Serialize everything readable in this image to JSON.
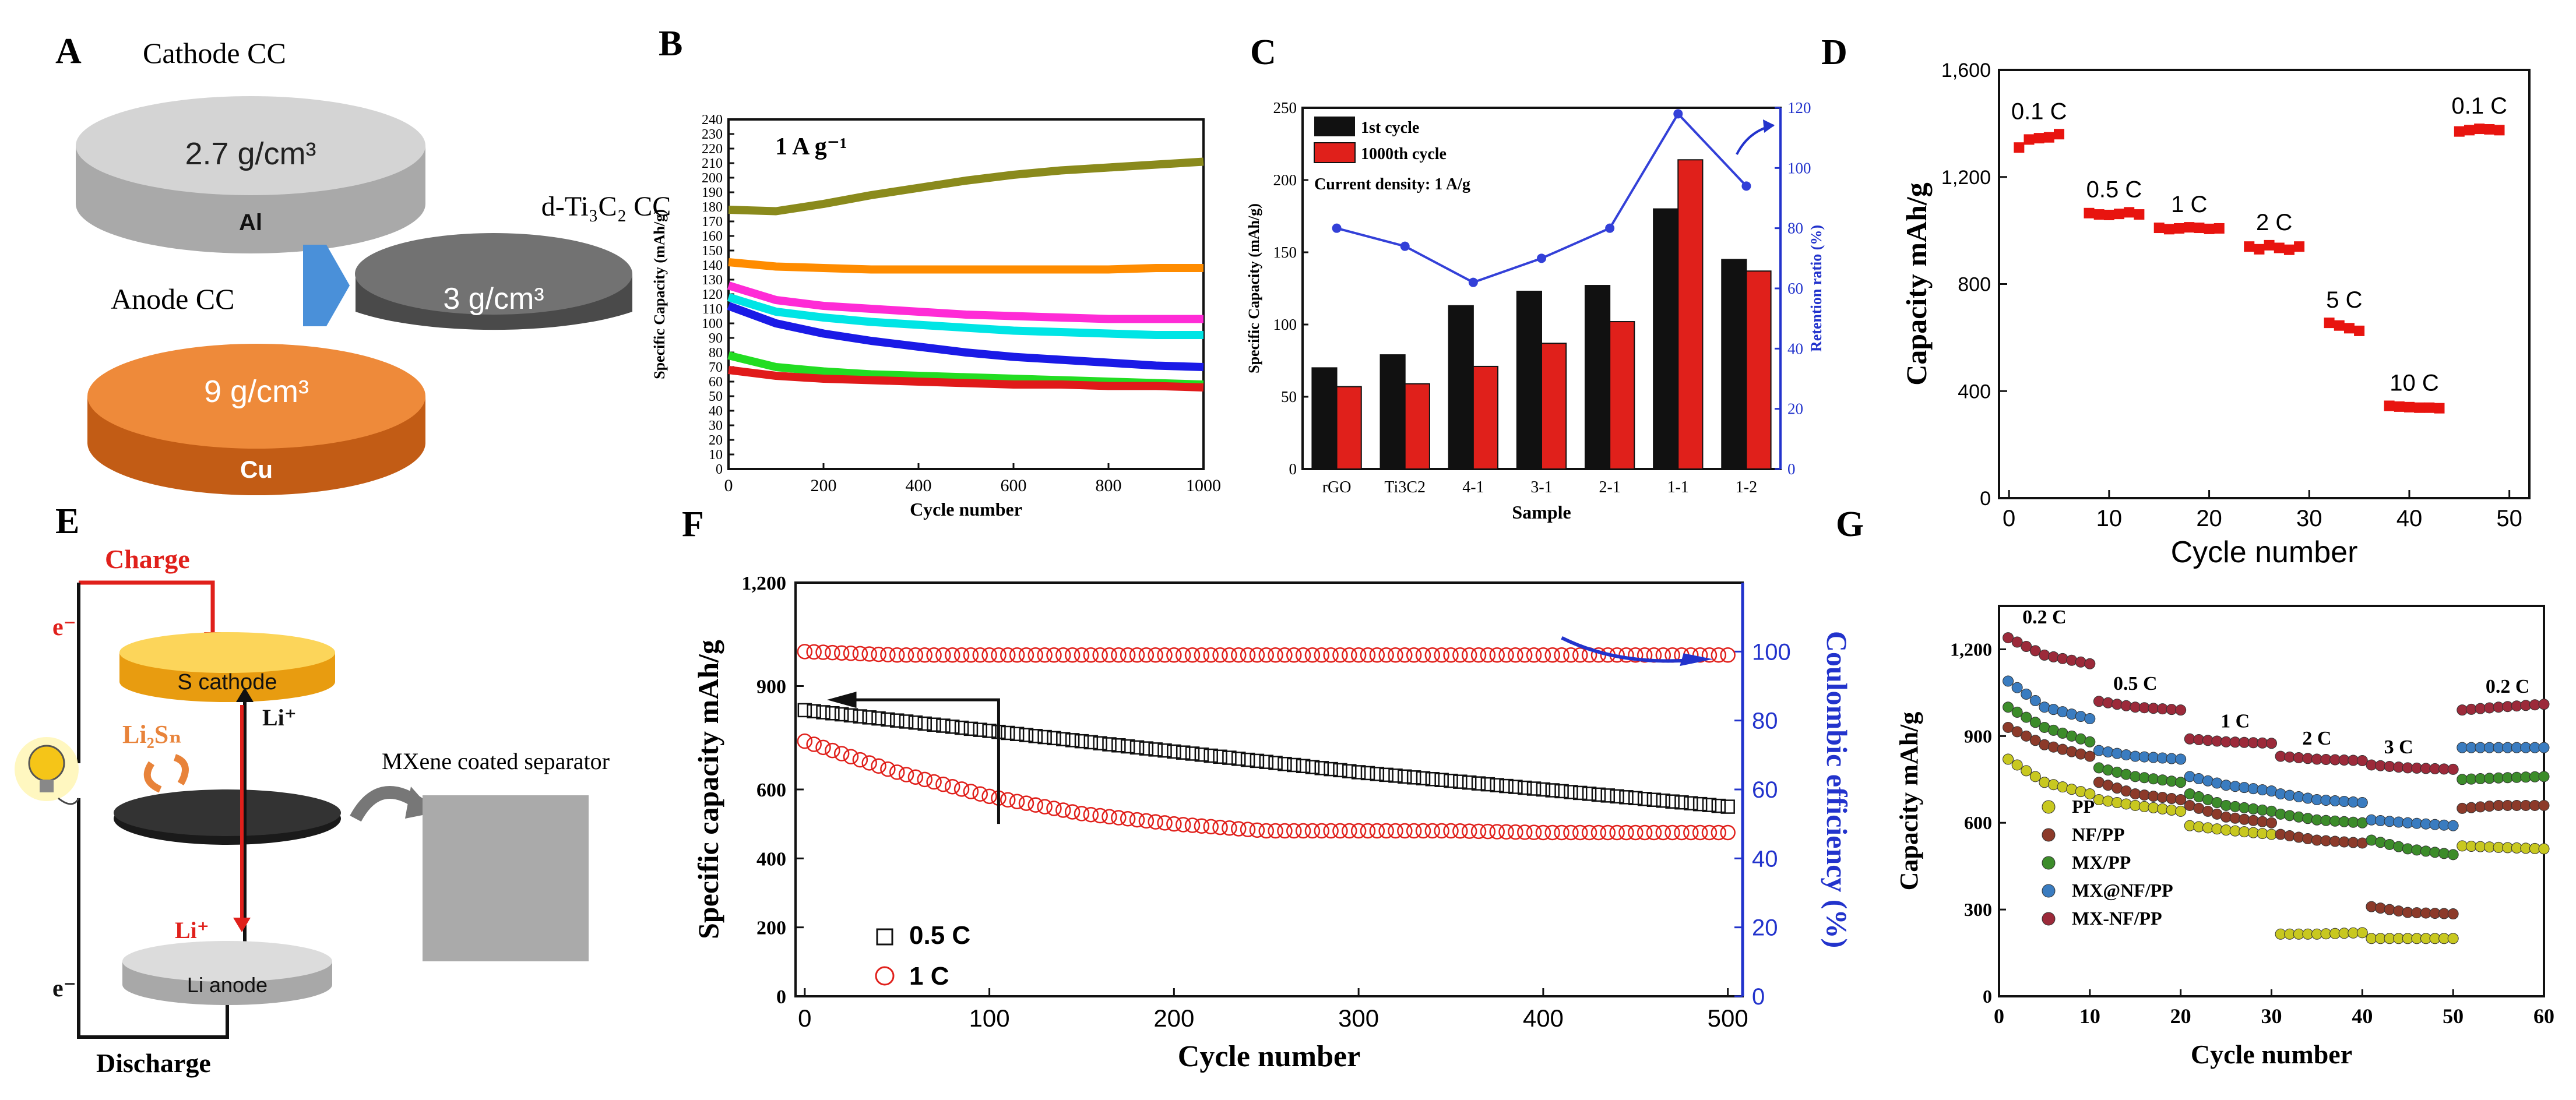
{
  "colors": {
    "black": "#111111",
    "red": "#e0201b",
    "blue": "#2a2fd0",
    "axis_blue": "#2233cc",
    "al": "#c9c9c9",
    "ti": "#6d6d6d",
    "cu": "#e87e2c",
    "arrow": "#4a90d9",
    "s_cathode": "#f5b21a"
  },
  "panel_a": {
    "letter": "A",
    "cathode_cc": "Cathode CC",
    "anode_cc": "Anode CC",
    "al_density": "2.7 g/cm³",
    "al_label": "Al",
    "ti_density": "3 g/cm³",
    "ti_label": "d-Ti₃C₂ CC",
    "cu_density": "9 g/cm³",
    "cu_label": "Cu"
  },
  "panel_e": {
    "letter": "E",
    "charge": "Charge",
    "discharge": "Discharge",
    "e_top": "e⁻",
    "e_bottom": "e⁻",
    "s_cathode": "S cathode",
    "li2sn": "Li₂Sₙ",
    "li_plus_up": "Li⁺",
    "li_plus_down": "Li⁺",
    "li_anode": "Li anode",
    "separator_label": "MXene coated separator"
  },
  "chart_data": [
    {
      "id": "B",
      "type": "line",
      "title": "",
      "annotation": "1 A g⁻¹",
      "xlabel": "Cycle number",
      "ylabel": "Specific Capacity (mAh/g)",
      "xlim": [
        0,
        1000
      ],
      "ylim": [
        0,
        240
      ],
      "xticks": [
        0,
        200,
        400,
        600,
        800,
        1000
      ],
      "yticks": [
        0,
        10,
        20,
        30,
        40,
        50,
        60,
        70,
        80,
        90,
        100,
        110,
        120,
        130,
        140,
        150,
        160,
        170,
        180,
        190,
        200,
        210,
        220,
        230,
        240
      ],
      "series": [
        {
          "name": "olive",
          "color": "#8a8a1c",
          "x": [
            0,
            100,
            200,
            300,
            400,
            500,
            600,
            700,
            800,
            900,
            1000
          ],
          "y": [
            178,
            177,
            182,
            188,
            193,
            198,
            202,
            205,
            207,
            209,
            211
          ]
        },
        {
          "name": "orange",
          "color": "#ff8c00",
          "x": [
            0,
            100,
            200,
            300,
            400,
            500,
            600,
            700,
            800,
            900,
            1000
          ],
          "y": [
            142,
            139,
            138,
            137,
            137,
            137,
            137,
            137,
            137,
            138,
            138
          ]
        },
        {
          "name": "magenta",
          "color": "#ff2bd6",
          "x": [
            0,
            100,
            200,
            300,
            400,
            500,
            600,
            700,
            800,
            900,
            1000
          ],
          "y": [
            126,
            116,
            112,
            110,
            108,
            106,
            105,
            104,
            103,
            103,
            103
          ]
        },
        {
          "name": "cyan",
          "color": "#00e5e5",
          "x": [
            0,
            100,
            200,
            300,
            400,
            500,
            600,
            700,
            800,
            900,
            1000
          ],
          "y": [
            118,
            108,
            104,
            101,
            99,
            97,
            95,
            94,
            93,
            92,
            92
          ]
        },
        {
          "name": "blue",
          "color": "#1a1ae6",
          "x": [
            0,
            100,
            200,
            300,
            400,
            500,
            600,
            700,
            800,
            900,
            1000
          ],
          "y": [
            112,
            100,
            93,
            88,
            84,
            80,
            77,
            75,
            73,
            71,
            70
          ]
        },
        {
          "name": "green",
          "color": "#22dd22",
          "x": [
            0,
            100,
            200,
            300,
            400,
            500,
            600,
            700,
            800,
            900,
            1000
          ],
          "y": [
            78,
            70,
            67,
            65,
            64,
            63,
            62,
            61,
            60,
            59,
            58
          ]
        },
        {
          "name": "red",
          "color": "#e01a1a",
          "x": [
            0,
            100,
            200,
            300,
            400,
            500,
            600,
            700,
            800,
            900,
            1000
          ],
          "y": [
            68,
            64,
            62,
            61,
            60,
            59,
            58,
            58,
            57,
            57,
            56
          ]
        }
      ]
    },
    {
      "id": "C",
      "type": "bar",
      "xlabel": "Sample",
      "ylabel": "Specific Capacity (mAh/g)",
      "y2label": "Retention ratio (%)",
      "annotation": "Current density: 1 A/g",
      "categories": [
        "rGO",
        "Ti3C2",
        "4-1",
        "3-1",
        "2-1",
        "1-1",
        "1-2"
      ],
      "ylim": [
        0,
        250
      ],
      "yticks": [
        0,
        50,
        100,
        150,
        200,
        250
      ],
      "y2lim": [
        0,
        120
      ],
      "y2ticks": [
        0,
        20,
        40,
        60,
        80,
        100,
        120
      ],
      "series": [
        {
          "name": "1st cycle",
          "color": "#111111",
          "values": [
            70,
            79,
            113,
            123,
            127,
            180,
            145
          ]
        },
        {
          "name": "1000th cycle",
          "color": "#e0201b",
          "values": [
            57,
            59,
            71,
            87,
            102,
            214,
            137
          ]
        }
      ],
      "retention": {
        "name": "Retention ratio",
        "color": "#3340d8",
        "values": [
          80,
          74,
          62,
          70,
          80,
          118,
          94
        ]
      }
    },
    {
      "id": "D",
      "type": "scatter",
      "xlabel": "Cycle number",
      "ylabel": "Capacity mAh/g",
      "xlim": [
        0,
        50
      ],
      "ylim": [
        0,
        1600
      ],
      "xticks": [
        0,
        10,
        20,
        30,
        40,
        50
      ],
      "yticks": [
        0,
        400,
        800,
        1200,
        1600
      ],
      "ytick_labels": [
        "0",
        "400",
        "800",
        "1,200",
        "1,600"
      ],
      "groups": [
        {
          "label": "0.1 C",
          "x": [
            1,
            2,
            3,
            4,
            5
          ],
          "y": [
            1310,
            1340,
            1345,
            1348,
            1360
          ]
        },
        {
          "label": "0.5 C",
          "x": [
            8,
            9,
            10,
            11,
            12,
            13
          ],
          "y": [
            1065,
            1060,
            1058,
            1062,
            1068,
            1060
          ]
        },
        {
          "label": "1 C",
          "x": [
            15,
            16,
            17,
            18,
            19,
            20,
            21
          ],
          "y": [
            1010,
            1005,
            1008,
            1012,
            1010,
            1006,
            1008
          ]
        },
        {
          "label": "2 C",
          "x": [
            24,
            25,
            26,
            27,
            28,
            29
          ],
          "y": [
            940,
            930,
            945,
            935,
            928,
            940
          ]
        },
        {
          "label": "5 C",
          "x": [
            32,
            33,
            34,
            35
          ],
          "y": [
            655,
            645,
            635,
            625
          ]
        },
        {
          "label": "10 C",
          "x": [
            38,
            39,
            40,
            41,
            42,
            43
          ],
          "y": [
            345,
            342,
            340,
            338,
            338,
            336
          ]
        },
        {
          "label": "0.1 C",
          "x": [
            45,
            46,
            47,
            48,
            49
          ],
          "y": [
            1370,
            1375,
            1380,
            1378,
            1375
          ]
        }
      ]
    },
    {
      "id": "F",
      "type": "scatter",
      "xlabel": "Cycle number",
      "ylabel": "Specific capacity mAh/g",
      "y2label": "Coulombic efficiency (%)",
      "xlim": [
        0,
        500
      ],
      "ylim": [
        0,
        1200
      ],
      "xticks": [
        0,
        100,
        200,
        300,
        400,
        500
      ],
      "yticks": [
        0,
        200,
        400,
        600,
        900,
        1200
      ],
      "ytick_labels": [
        "0",
        "200",
        "400",
        "600",
        "900",
        "1,200"
      ],
      "y2lim": [
        0,
        120
      ],
      "y2ticks": [
        0,
        20,
        40,
        60,
        80,
        100
      ],
      "series": [
        {
          "name": "0.5 C",
          "color": "#111111",
          "marker": "square",
          "x": [
            0,
            50,
            100,
            150,
            200,
            250,
            300,
            350,
            400,
            450,
            500
          ],
          "y": [
            830,
            800,
            770,
            740,
            710,
            680,
            650,
            625,
            600,
            575,
            550
          ]
        },
        {
          "name": "1 C",
          "color": "#e0201b",
          "marker": "circle",
          "x": [
            0,
            50,
            100,
            150,
            200,
            250,
            300,
            350,
            400,
            450,
            500
          ],
          "y": [
            740,
            650,
            580,
            530,
            500,
            480,
            480,
            480,
            475,
            475,
            475
          ]
        },
        {
          "name": "CE",
          "color": "#e0201b",
          "marker": "circle",
          "axis": "y2",
          "x": [
            0,
            50,
            100,
            150,
            200,
            250,
            300,
            350,
            400,
            450,
            500
          ],
          "y": [
            100,
            99,
            99,
            99,
            99,
            99,
            99,
            99,
            99,
            99,
            99
          ]
        }
      ]
    },
    {
      "id": "G",
      "type": "scatter",
      "xlabel": "Cycle number",
      "ylabel": "Capacity mAh/g",
      "xlim": [
        0,
        60
      ],
      "ylim": [
        0,
        1350
      ],
      "xticks": [
        0,
        10,
        20,
        30,
        40,
        50,
        60
      ],
      "yticks": [
        0,
        300,
        600,
        900,
        1200
      ],
      "ytick_labels": [
        "0",
        "300",
        "600",
        "900",
        "1,200"
      ],
      "rate_labels": [
        "0.2 C",
        "0.5 C",
        "1 C",
        "2 C",
        "3 C",
        "0.2 C"
      ],
      "series": [
        {
          "name": "PP",
          "color": "#c8c820",
          "x": [
            1,
            5,
            10,
            11,
            15,
            20,
            21,
            25,
            30,
            31,
            35,
            40,
            41,
            45,
            50,
            51,
            55,
            60
          ],
          "y": [
            820,
            740,
            700,
            680,
            660,
            640,
            590,
            575,
            560,
            215,
            215,
            220,
            200,
            200,
            200,
            520,
            515,
            510
          ]
        },
        {
          "name": "NF/PP",
          "color": "#8c3a2a",
          "x": [
            1,
            5,
            10,
            11,
            15,
            20,
            21,
            25,
            30,
            31,
            35,
            40,
            41,
            45,
            50,
            51,
            55,
            60
          ],
          "y": [
            930,
            870,
            830,
            740,
            700,
            680,
            660,
            620,
            600,
            560,
            540,
            530,
            310,
            290,
            285,
            650,
            660,
            660
          ]
        },
        {
          "name": "MX/PP",
          "color": "#3c8c2a",
          "x": [
            1,
            5,
            10,
            11,
            15,
            20,
            21,
            25,
            30,
            31,
            35,
            40,
            41,
            45,
            50,
            51,
            55,
            60
          ],
          "y": [
            1000,
            930,
            880,
            790,
            760,
            740,
            700,
            660,
            640,
            630,
            610,
            600,
            540,
            510,
            490,
            750,
            755,
            760
          ]
        },
        {
          "name": "MX@NF/PP",
          "color": "#3a7cc0",
          "x": [
            1,
            5,
            10,
            11,
            15,
            20,
            21,
            25,
            30,
            31,
            35,
            40,
            41,
            45,
            50,
            51,
            55,
            60
          ],
          "y": [
            1090,
            1000,
            960,
            850,
            830,
            820,
            760,
            730,
            710,
            700,
            680,
            670,
            610,
            600,
            590,
            860,
            860,
            860
          ]
        },
        {
          "name": "MX-NF/PP",
          "color": "#9c2a3a",
          "x": [
            1,
            5,
            10,
            11,
            15,
            20,
            21,
            25,
            30,
            31,
            35,
            40,
            41,
            45,
            50,
            51,
            55,
            60
          ],
          "y": [
            1240,
            1180,
            1150,
            1020,
            1000,
            990,
            890,
            880,
            875,
            830,
            820,
            815,
            800,
            790,
            785,
            990,
            1000,
            1010
          ]
        }
      ]
    }
  ]
}
